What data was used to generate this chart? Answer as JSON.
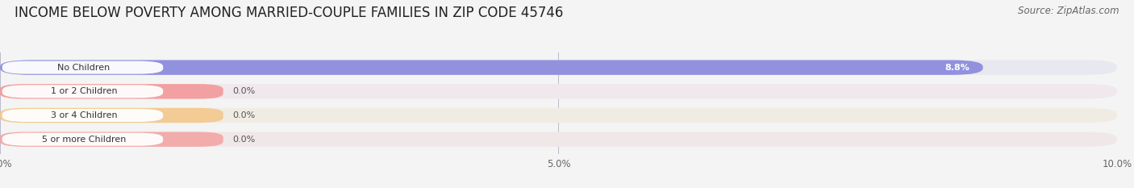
{
  "title": "INCOME BELOW POVERTY AMONG MARRIED-COUPLE FAMILIES IN ZIP CODE 45746",
  "source": "Source: ZipAtlas.com",
  "categories": [
    "No Children",
    "1 or 2 Children",
    "3 or 4 Children",
    "5 or more Children"
  ],
  "values": [
    8.8,
    0.0,
    0.0,
    0.0
  ],
  "bar_colors": [
    "#8888dd",
    "#f48888",
    "#f5c07a",
    "#f49898"
  ],
  "xlim": [
    0,
    10.0
  ],
  "xticks": [
    0.0,
    5.0,
    10.0
  ],
  "xticklabels": [
    "0.0%",
    "5.0%",
    "10.0%"
  ],
  "background_color": "#f4f4f4",
  "bar_bg_color": "#e4e4ec",
  "bar_bg_color_rows": [
    "#e8e8f0",
    "#f0e8ec",
    "#f0ece4",
    "#f0e8e8"
  ],
  "title_fontsize": 12,
  "source_fontsize": 8.5,
  "bar_height": 0.62,
  "value_label_color_inside": "white",
  "value_label_color_outside": "#666666"
}
